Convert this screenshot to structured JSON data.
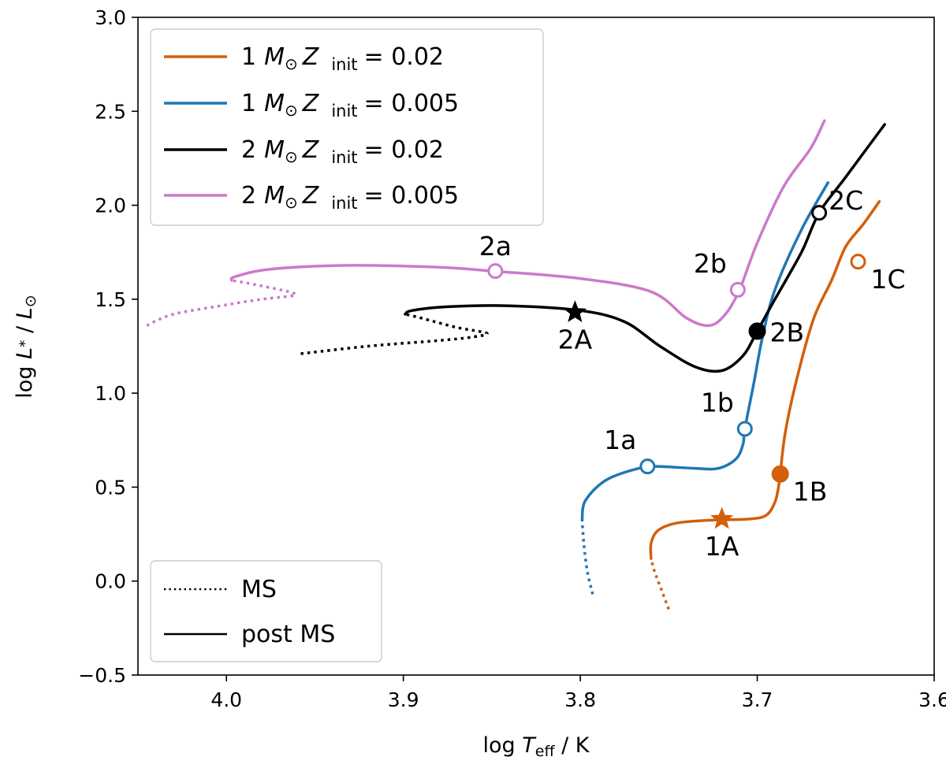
{
  "chart_data": {
    "type": "line",
    "title": "",
    "xlabel": "log T_eff / K",
    "ylabel": "log L* / L⊙",
    "xlabel_parts": {
      "prefix": "log ",
      "var": "T",
      "sub": "eff",
      "suffix": " / K"
    },
    "ylabel_parts": {
      "prefix": "log ",
      "var": "L",
      "star": "*",
      "suffix": " / ",
      "var2": "L",
      "sun": "⊙"
    },
    "xlim": [
      4.05,
      3.6
    ],
    "ylim": [
      -0.5,
      3.0
    ],
    "x_inverted": true,
    "xticks": [
      4.0,
      3.9,
      3.8,
      3.7,
      3.6
    ],
    "xtick_labels": [
      "4.0",
      "3.9",
      "3.8",
      "3.7",
      "3.6"
    ],
    "yticks": [
      -0.5,
      0.0,
      0.5,
      1.0,
      1.5,
      2.0,
      2.5,
      3.0
    ],
    "ytick_labels": [
      "−0.5",
      "0.0",
      "0.5",
      "1.0",
      "1.5",
      "2.0",
      "2.5",
      "3.0"
    ],
    "grid": false,
    "legend_placement": "top-left",
    "colors": {
      "orange": "#d35f0a",
      "blue": "#1f77b4",
      "black": "#000000",
      "pink": "#cc79cc"
    },
    "series": [
      {
        "name": "1 M⊙ Z init = 0.02",
        "legend": {
          "mass": "1",
          "M": "M",
          "sun": "⊙",
          "Z": "Z",
          "sub": "init",
          "value": "= 0.02"
        },
        "color": "#d35f0a",
        "ms": [
          [
            3.75,
            -0.15
          ],
          [
            3.754,
            -0.05
          ],
          [
            3.758,
            0.05
          ],
          [
            3.76,
            0.12
          ]
        ],
        "post_ms": [
          [
            3.76,
            0.12
          ],
          [
            3.76,
            0.2
          ],
          [
            3.756,
            0.27
          ],
          [
            3.745,
            0.31
          ],
          [
            3.725,
            0.325
          ],
          [
            3.705,
            0.33
          ],
          [
            3.695,
            0.35
          ],
          [
            3.69,
            0.42
          ],
          [
            3.688,
            0.5
          ],
          [
            3.687,
            0.57
          ],
          [
            3.684,
            0.8
          ],
          [
            3.677,
            1.1
          ],
          [
            3.668,
            1.4
          ],
          [
            3.658,
            1.6
          ],
          [
            3.65,
            1.78
          ],
          [
            3.64,
            1.9
          ],
          [
            3.631,
            2.02
          ]
        ]
      },
      {
        "name": "1 M⊙ Z init = 0.005",
        "legend": {
          "mass": "1",
          "M": "M",
          "sun": "⊙",
          "Z": "Z",
          "sub": "init",
          "value": "= 0.005"
        },
        "color": "#1f77b4",
        "ms": [
          [
            3.793,
            -0.07
          ],
          [
            3.796,
            0.05
          ],
          [
            3.798,
            0.2
          ],
          [
            3.799,
            0.33
          ]
        ],
        "post_ms": [
          [
            3.799,
            0.33
          ],
          [
            3.797,
            0.43
          ],
          [
            3.785,
            0.54
          ],
          [
            3.765,
            0.605
          ],
          [
            3.755,
            0.61
          ],
          [
            3.735,
            0.6
          ],
          [
            3.722,
            0.6
          ],
          [
            3.712,
            0.65
          ],
          [
            3.708,
            0.73
          ],
          [
            3.707,
            0.81
          ],
          [
            3.702,
            1.05
          ],
          [
            3.697,
            1.3
          ],
          [
            3.69,
            1.55
          ],
          [
            3.675,
            1.87
          ],
          [
            3.66,
            2.12
          ]
        ]
      },
      {
        "name": "2 M⊙ Z init = 0.02",
        "legend": {
          "mass": "2",
          "M": "M",
          "sun": "⊙",
          "Z": "Z",
          "sub": "init",
          "value": "= 0.02"
        },
        "color": "#000000",
        "ms": [
          [
            3.958,
            1.21
          ],
          [
            3.92,
            1.25
          ],
          [
            3.88,
            1.28
          ],
          [
            3.86,
            1.3
          ],
          [
            3.853,
            1.32
          ],
          [
            3.87,
            1.35
          ],
          [
            3.89,
            1.4
          ],
          [
            3.899,
            1.42
          ]
        ],
        "post_ms": [
          [
            3.899,
            1.42
          ],
          [
            3.895,
            1.44
          ],
          [
            3.875,
            1.46
          ],
          [
            3.84,
            1.465
          ],
          [
            3.8,
            1.44
          ],
          [
            3.775,
            1.38
          ],
          [
            3.755,
            1.25
          ],
          [
            3.735,
            1.14
          ],
          [
            3.72,
            1.12
          ],
          [
            3.708,
            1.2
          ],
          [
            3.7,
            1.33
          ],
          [
            3.69,
            1.5
          ],
          [
            3.675,
            1.75
          ],
          [
            3.665,
            1.96
          ],
          [
            3.65,
            2.15
          ],
          [
            3.628,
            2.43
          ]
        ]
      },
      {
        "name": "2 M⊙ Z init = 0.005",
        "legend": {
          "mass": "2",
          "M": "M",
          "sun": "⊙",
          "Z": "Z",
          "sub": "init",
          "value": "= 0.005"
        },
        "color": "#cc79cc",
        "ms": [
          [
            4.045,
            1.36
          ],
          [
            4.03,
            1.42
          ],
          [
            4.0,
            1.47
          ],
          [
            3.98,
            1.5
          ],
          [
            3.962,
            1.52
          ],
          [
            3.965,
            1.54
          ],
          [
            3.985,
            1.58
          ],
          [
            3.997,
            1.6
          ]
        ],
        "post_ms": [
          [
            3.997,
            1.6
          ],
          [
            3.995,
            1.62
          ],
          [
            3.975,
            1.66
          ],
          [
            3.93,
            1.68
          ],
          [
            3.88,
            1.67
          ],
          [
            3.85,
            1.65
          ],
          [
            3.8,
            1.61
          ],
          [
            3.76,
            1.54
          ],
          [
            3.74,
            1.4
          ],
          [
            3.727,
            1.36
          ],
          [
            3.718,
            1.42
          ],
          [
            3.71,
            1.55
          ],
          [
            3.7,
            1.8
          ],
          [
            3.685,
            2.1
          ],
          [
            3.67,
            2.3
          ],
          [
            3.662,
            2.45
          ]
        ]
      }
    ],
    "markers": [
      {
        "label": "1A",
        "x": 3.72,
        "y": 0.33,
        "shape": "star",
        "filled": true,
        "color": "#d35f0a",
        "label_pos": "below"
      },
      {
        "label": "1B",
        "x": 3.687,
        "y": 0.57,
        "shape": "circle",
        "filled": true,
        "color": "#d35f0a",
        "label_pos": "below-right"
      },
      {
        "label": "1C",
        "x": 3.643,
        "y": 1.7,
        "shape": "circle",
        "filled": false,
        "color": "#d35f0a",
        "label_pos": "below-right"
      },
      {
        "label": "1a",
        "x": 3.762,
        "y": 0.61,
        "shape": "circle",
        "filled": false,
        "color": "#1f77b4",
        "label_pos": "above-left"
      },
      {
        "label": "1b",
        "x": 3.707,
        "y": 0.81,
        "shape": "circle",
        "filled": false,
        "color": "#1f77b4",
        "label_pos": "above-left"
      },
      {
        "label": "2A",
        "x": 3.803,
        "y": 1.43,
        "shape": "star",
        "filled": true,
        "color": "#000000",
        "label_pos": "below"
      },
      {
        "label": "2B",
        "x": 3.7,
        "y": 1.33,
        "shape": "circle",
        "filled": true,
        "color": "#000000",
        "label_pos": "right"
      },
      {
        "label": "2C",
        "x": 3.665,
        "y": 1.96,
        "shape": "circle",
        "filled": false,
        "color": "#000000",
        "label_pos": "above-right"
      },
      {
        "label": "2a",
        "x": 3.848,
        "y": 1.65,
        "shape": "circle",
        "filled": false,
        "color": "#cc79cc",
        "label_pos": "above"
      },
      {
        "label": "2b",
        "x": 3.711,
        "y": 1.55,
        "shape": "circle",
        "filled": false,
        "color": "#cc79cc",
        "label_pos": "above-left"
      }
    ],
    "style_legend": [
      {
        "label": "MS",
        "style": "dotted"
      },
      {
        "label": "post MS",
        "style": "solid"
      }
    ]
  }
}
